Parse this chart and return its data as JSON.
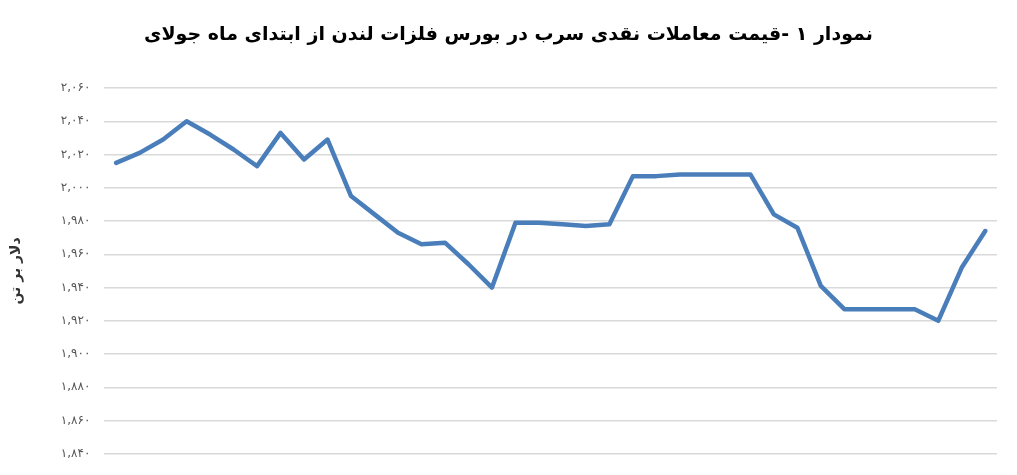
{
  "chart_data": {
    "type": "line",
    "title": "نمودار ۱ -قیمت معاملات نقدی سرب در بورس فلزات لندن از ابتدای ماه جولای",
    "ylabel": "دلار بر تن",
    "categories": [
      null,
      null,
      null,
      null,
      null,
      null,
      null,
      null,
      null,
      null,
      null,
      null,
      null,
      null,
      null,
      null,
      null,
      null,
      null,
      null,
      null,
      null,
      null,
      null,
      null,
      null,
      null,
      null,
      null,
      null,
      null,
      null,
      null,
      null,
      null,
      null,
      null,
      null
    ],
    "series": [
      {
        "color": "#4a7ebb",
        "values": [
          2015,
          2021,
          2029,
          2040,
          2032,
          2023,
          2013,
          2033,
          2017,
          2029,
          1995,
          1984,
          1973,
          1966,
          1967,
          1954,
          1940,
          1979,
          1979,
          1978,
          1977,
          1978,
          2007,
          2007,
          2008,
          2008,
          2008,
          2008,
          1984,
          1976,
          1941,
          1927,
          1927,
          1927,
          1927,
          1920,
          1952,
          1974
        ]
      }
    ],
    "ylim": [
      1840,
      2060
    ],
    "yticks": [
      {
        "value": 1840,
        "label": "۱,۸۴۰"
      },
      {
        "value": 1860,
        "label": "۱,۸۶۰"
      },
      {
        "value": 1880,
        "label": "۱,۸۸۰"
      },
      {
        "value": 1900,
        "label": "۱,۹۰۰"
      },
      {
        "value": 1920,
        "label": "۱,۹۲۰"
      },
      {
        "value": 1940,
        "label": "۱,۹۴۰"
      },
      {
        "value": 1960,
        "label": "۱,۹۶۰"
      },
      {
        "value": 1980,
        "label": "۱,۹۸۰"
      },
      {
        "value": 2000,
        "label": "۲,۰۰۰"
      },
      {
        "value": 2020,
        "label": "۲,۰۲۰"
      },
      {
        "value": 2040,
        "label": "۲,۰۴۰"
      },
      {
        "value": 2060,
        "label": "۲,۰۶۰"
      }
    ],
    "grid": "y",
    "legend": false,
    "marker": "none",
    "line_style": "solid"
  }
}
